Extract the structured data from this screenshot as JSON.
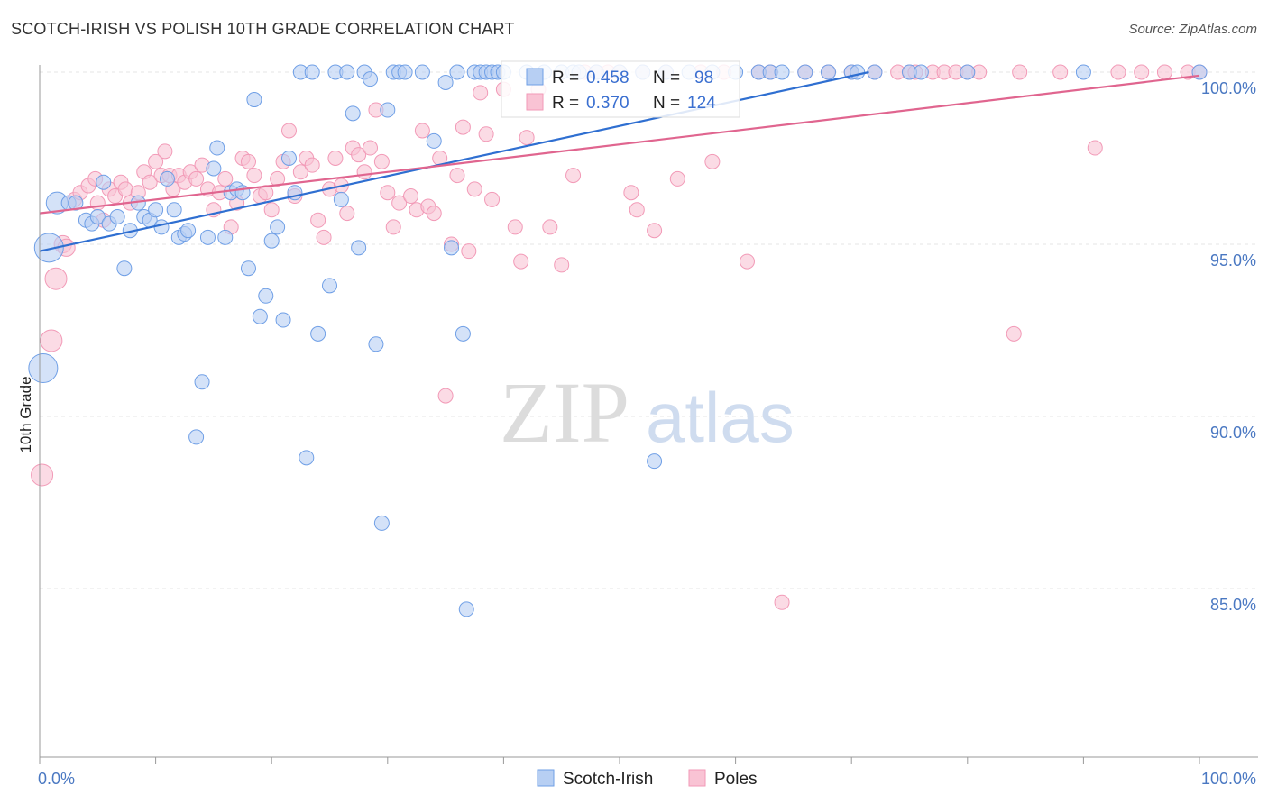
{
  "title": "SCOTCH-IRISH VS POLISH 10TH GRADE CORRELATION CHART",
  "source": "Source: ZipAtlas.com",
  "watermark": {
    "zip": "ZIP",
    "atlas": "atlas"
  },
  "colors": {
    "blue": "#6f9fe6",
    "blue_line": "#2f6fd1",
    "pink": "#f29ab7",
    "pink_line": "#e0658f",
    "tick_label": "#4a78c2"
  },
  "legend_box": {
    "r_label": "R =",
    "n_label": "N =",
    "rows": [
      {
        "r": "0.458",
        "n": "98"
      },
      {
        "r": "0.370",
        "n": "124"
      }
    ]
  },
  "chart_data": {
    "type": "scatter",
    "title": "SCOTCH-IRISH VS POLISH 10TH GRADE CORRELATION CHART",
    "xlabel": "",
    "ylabel": "10th Grade",
    "xlim": [
      0,
      100
    ],
    "ylim": [
      80.5,
      100.7
    ],
    "x_tick_labels": [
      "0.0%",
      "100.0%"
    ],
    "y_ticks": [
      100,
      95,
      90,
      85
    ],
    "y_tick_labels": [
      "100.0%",
      "95.0%",
      "90.0%",
      "85.0%"
    ],
    "grid": true,
    "legend_position": "bottom-center",
    "series": [
      {
        "name": "Scotch-Irish",
        "r": 0.458,
        "n": 98,
        "trend": {
          "x": [
            0,
            71.5
          ],
          "y": [
            94.8,
            100
          ]
        },
        "points": [
          [
            0.3,
            91.4,
            2
          ],
          [
            0.8,
            94.9,
            2
          ],
          [
            1.5,
            96.2,
            1.5
          ],
          [
            2.5,
            96.2,
            1
          ],
          [
            3.1,
            96.2,
            1
          ],
          [
            4,
            95.7,
            1
          ],
          [
            4.5,
            95.6,
            1
          ],
          [
            5,
            95.8,
            1
          ],
          [
            5.5,
            96.8,
            1
          ],
          [
            6,
            95.6,
            1
          ],
          [
            6.7,
            95.8,
            1
          ],
          [
            7.3,
            94.3,
            1
          ],
          [
            7.8,
            95.4,
            1
          ],
          [
            8.5,
            96.2,
            1
          ],
          [
            9,
            95.8,
            1
          ],
          [
            9.5,
            95.7,
            1
          ],
          [
            10,
            96,
            1
          ],
          [
            10.5,
            95.5,
            1
          ],
          [
            11,
            96.9,
            1
          ],
          [
            11.6,
            96,
            1
          ],
          [
            12,
            95.2,
            1
          ],
          [
            12.5,
            95.3,
            1
          ],
          [
            12.8,
            95.4,
            1
          ],
          [
            13.5,
            89.4,
            1
          ],
          [
            14,
            91,
            1
          ],
          [
            14.5,
            95.2,
            1
          ],
          [
            15,
            97.2,
            1
          ],
          [
            15.3,
            97.8,
            1
          ],
          [
            16,
            95.2,
            1
          ],
          [
            16.5,
            96.5,
            1
          ],
          [
            17,
            96.6,
            1
          ],
          [
            17.5,
            96.5,
            1
          ],
          [
            18,
            94.3,
            1
          ],
          [
            18.5,
            99.2,
            1
          ],
          [
            19,
            92.9,
            1
          ],
          [
            19.5,
            93.5,
            1
          ],
          [
            20,
            95.1,
            1
          ],
          [
            20.5,
            95.5,
            1
          ],
          [
            21,
            92.8,
            1
          ],
          [
            21.5,
            97.5,
            1
          ],
          [
            22,
            96.5,
            1
          ],
          [
            22.5,
            100,
            1
          ],
          [
            23,
            88.8,
            1
          ],
          [
            23.5,
            100,
            1
          ],
          [
            24,
            92.4,
            1
          ],
          [
            25,
            93.8,
            1
          ],
          [
            25.5,
            100,
            1
          ],
          [
            26,
            96.3,
            1
          ],
          [
            26.5,
            100,
            1
          ],
          [
            27,
            98.8,
            1
          ],
          [
            27.5,
            94.9,
            1
          ],
          [
            28,
            100,
            1
          ],
          [
            28.5,
            99.8,
            1
          ],
          [
            29,
            92.1,
            1
          ],
          [
            29.5,
            86.9,
            1
          ],
          [
            30,
            98.9,
            1
          ],
          [
            30.5,
            100,
            1
          ],
          [
            31,
            100,
            1
          ],
          [
            31.5,
            100,
            1
          ],
          [
            33,
            100,
            1
          ],
          [
            34,
            98,
            1
          ],
          [
            35,
            99.7,
            1
          ],
          [
            35.5,
            94.9,
            1
          ],
          [
            36,
            100,
            1
          ],
          [
            36.5,
            92.4,
            1
          ],
          [
            36.8,
            84.4,
            1
          ],
          [
            37.5,
            100,
            1
          ],
          [
            38,
            100,
            1
          ],
          [
            38.5,
            100,
            1
          ],
          [
            39,
            100,
            1
          ],
          [
            39.5,
            100,
            1
          ],
          [
            40,
            100,
            1
          ],
          [
            42,
            100,
            1
          ],
          [
            43.5,
            100,
            1
          ],
          [
            45,
            100,
            1
          ],
          [
            46,
            100,
            1
          ],
          [
            46.5,
            100,
            1
          ],
          [
            48,
            100,
            1
          ],
          [
            50,
            100,
            1
          ],
          [
            52,
            100,
            1
          ],
          [
            54,
            100,
            1
          ],
          [
            56,
            100,
            1
          ],
          [
            58,
            100,
            1
          ],
          [
            60,
            100,
            1
          ],
          [
            62,
            100,
            1
          ],
          [
            63,
            100,
            1
          ],
          [
            64,
            100,
            1
          ],
          [
            66,
            100,
            1
          ],
          [
            68,
            100,
            1
          ],
          [
            70,
            100,
            1
          ],
          [
            70.5,
            100,
            1
          ],
          [
            72,
            100,
            1
          ],
          [
            75,
            100,
            1
          ],
          [
            76,
            100,
            1
          ],
          [
            80,
            100,
            1
          ],
          [
            90,
            100,
            1
          ],
          [
            100,
            100,
            1
          ],
          [
            53,
            88.7,
            1
          ]
        ]
      },
      {
        "name": "Poles",
        "r": 0.37,
        "n": 124,
        "trend": {
          "x": [
            0,
            100
          ],
          "y": [
            95.9,
            99.9
          ]
        },
        "points": [
          [
            0.2,
            88.3,
            1.5
          ],
          [
            1,
            92.2,
            1.5
          ],
          [
            1.4,
            94,
            1.5
          ],
          [
            2,
            95,
            1.2
          ],
          [
            2.3,
            94.9,
            1.2
          ],
          [
            3,
            96.3,
            1
          ],
          [
            3.5,
            96.5,
            1
          ],
          [
            4.2,
            96.7,
            1
          ],
          [
            4.8,
            96.9,
            1
          ],
          [
            5,
            96.2,
            1
          ],
          [
            5.5,
            95.7,
            1
          ],
          [
            6,
            96.6,
            1
          ],
          [
            6.5,
            96.4,
            1
          ],
          [
            7,
            96.8,
            1
          ],
          [
            7.4,
            96.6,
            1
          ],
          [
            7.8,
            96.2,
            1
          ],
          [
            8.5,
            96.5,
            1
          ],
          [
            9,
            97.1,
            1
          ],
          [
            9.5,
            96.8,
            1
          ],
          [
            10,
            97.4,
            1
          ],
          [
            10.5,
            97,
            1
          ],
          [
            10.8,
            97.7,
            1
          ],
          [
            11.2,
            97,
            1
          ],
          [
            11.5,
            96.6,
            1
          ],
          [
            12,
            97,
            1
          ],
          [
            12.5,
            96.8,
            1
          ],
          [
            13,
            97.1,
            1
          ],
          [
            13.5,
            96.9,
            1
          ],
          [
            14,
            97.3,
            1
          ],
          [
            14.5,
            96.6,
            1
          ],
          [
            15,
            96,
            1
          ],
          [
            15.5,
            96.5,
            1
          ],
          [
            16,
            96.9,
            1
          ],
          [
            16.5,
            95.5,
            1
          ],
          [
            17,
            96.2,
            1
          ],
          [
            17.5,
            97.5,
            1
          ],
          [
            18,
            97.4,
            1
          ],
          [
            18.5,
            97,
            1
          ],
          [
            19,
            96.4,
            1
          ],
          [
            19.5,
            96.5,
            1
          ],
          [
            20,
            96,
            1
          ],
          [
            20.5,
            96.9,
            1
          ],
          [
            21,
            97.4,
            1
          ],
          [
            21.5,
            98.3,
            1
          ],
          [
            22,
            96.4,
            1
          ],
          [
            22.5,
            97.1,
            1
          ],
          [
            23,
            97.5,
            1
          ],
          [
            23.5,
            97.3,
            1
          ],
          [
            24,
            95.7,
            1
          ],
          [
            24.5,
            95.2,
            1
          ],
          [
            25,
            96.6,
            1
          ],
          [
            25.5,
            97.5,
            1
          ],
          [
            26,
            96.7,
            1
          ],
          [
            26.5,
            95.9,
            1
          ],
          [
            27,
            97.8,
            1
          ],
          [
            27.5,
            97.6,
            1
          ],
          [
            28,
            97.1,
            1
          ],
          [
            28.5,
            97.8,
            1
          ],
          [
            29,
            98.9,
            1
          ],
          [
            29.5,
            97.4,
            1
          ],
          [
            30,
            96.5,
            1
          ],
          [
            30.5,
            95.5,
            1
          ],
          [
            31,
            96.2,
            1
          ],
          [
            32,
            96.4,
            1
          ],
          [
            32.5,
            96,
            1
          ],
          [
            33,
            98.3,
            1
          ],
          [
            33.5,
            96.1,
            1
          ],
          [
            34,
            95.9,
            1
          ],
          [
            34.5,
            97.5,
            1
          ],
          [
            35,
            90.6,
            1
          ],
          [
            35.5,
            95,
            1
          ],
          [
            36,
            97,
            1
          ],
          [
            36.5,
            98.4,
            1
          ],
          [
            37,
            94.8,
            1
          ],
          [
            37.5,
            96.6,
            1
          ],
          [
            38,
            99.4,
            1
          ],
          [
            38.5,
            98.2,
            1
          ],
          [
            39,
            96.3,
            1
          ],
          [
            40,
            99.5,
            1
          ],
          [
            41,
            95.5,
            1
          ],
          [
            41.5,
            94.5,
            1
          ],
          [
            42,
            98.1,
            1
          ],
          [
            43,
            99.5,
            1
          ],
          [
            44,
            95.5,
            1
          ],
          [
            45,
            94.4,
            1
          ],
          [
            46,
            97,
            1
          ],
          [
            47,
            100,
            1
          ],
          [
            48,
            100,
            1
          ],
          [
            49,
            100,
            1
          ],
          [
            50,
            100,
            1
          ],
          [
            51,
            96.5,
            1
          ],
          [
            51.5,
            96,
            1
          ],
          [
            52,
            100,
            1
          ],
          [
            53,
            95.4,
            1
          ],
          [
            54,
            100,
            1
          ],
          [
            55,
            96.9,
            1
          ],
          [
            57,
            100,
            1
          ],
          [
            58,
            97.4,
            1
          ],
          [
            59,
            100,
            1
          ],
          [
            61,
            94.5,
            1
          ],
          [
            62,
            100,
            1
          ],
          [
            63,
            100,
            1
          ],
          [
            64,
            84.6,
            1
          ],
          [
            66,
            100,
            1
          ],
          [
            68,
            100,
            1
          ],
          [
            70,
            100,
            1
          ],
          [
            72,
            100,
            1
          ],
          [
            74,
            100,
            1
          ],
          [
            75,
            100,
            1
          ],
          [
            75.5,
            100,
            1
          ],
          [
            77,
            100,
            1
          ],
          [
            78,
            100,
            1
          ],
          [
            79,
            100,
            1
          ],
          [
            80,
            100,
            1
          ],
          [
            81,
            100,
            1
          ],
          [
            84,
            92.4,
            1
          ],
          [
            84.5,
            100,
            1
          ],
          [
            88,
            100,
            1
          ],
          [
            91,
            97.8,
            1
          ],
          [
            93,
            100,
            1
          ],
          [
            95,
            100,
            1
          ],
          [
            97,
            100,
            1
          ],
          [
            99,
            100,
            1
          ],
          [
            100,
            100,
            1
          ]
        ]
      }
    ]
  }
}
